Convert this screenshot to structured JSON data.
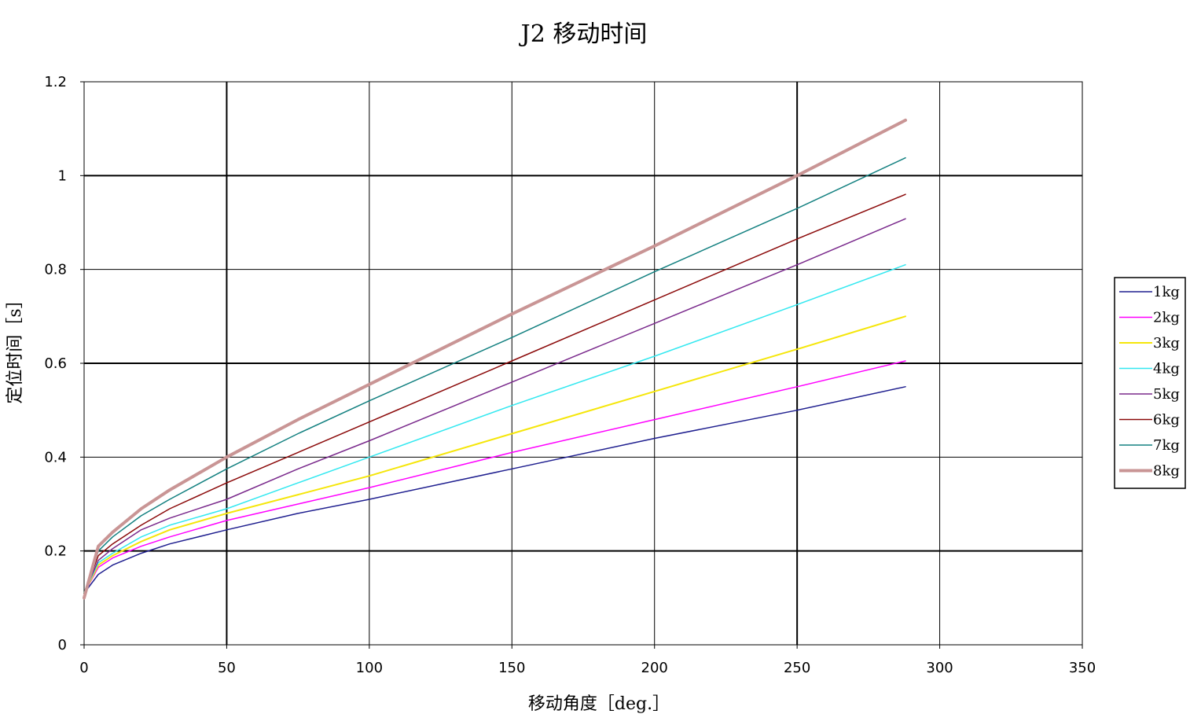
{
  "chart_data": {
    "type": "line",
    "title": "J2 移动时间",
    "xlabel": "移动角度［deg.］",
    "ylabel": "定位时间［s］",
    "xlim": [
      0,
      350
    ],
    "ylim": [
      0,
      1.2
    ],
    "x_ticks": [
      "0",
      "50",
      "100",
      "150",
      "200",
      "250",
      "300",
      "350"
    ],
    "y_ticks": [
      "0",
      "0.2",
      "0.4",
      "0.6",
      "0.8",
      "1",
      "1.2"
    ],
    "grid": true,
    "legend_position": "right",
    "x": [
      0,
      5,
      10,
      20,
      30,
      50,
      75,
      100,
      150,
      200,
      250,
      288
    ],
    "series": [
      {
        "name": "1kg",
        "color": "#1f1f8f",
        "width": 1.5,
        "values": [
          0.11,
          0.15,
          0.17,
          0.195,
          0.215,
          0.245,
          0.28,
          0.31,
          0.375,
          0.44,
          0.5,
          0.55
        ]
      },
      {
        "name": "2kg",
        "color": "#ff00ff",
        "width": 1.5,
        "values": [
          0.11,
          0.165,
          0.185,
          0.21,
          0.23,
          0.265,
          0.3,
          0.335,
          0.41,
          0.48,
          0.55,
          0.605
        ]
      },
      {
        "name": "3kg",
        "color": "#f5e60a",
        "width": 2,
        "values": [
          0.11,
          0.17,
          0.19,
          0.22,
          0.245,
          0.28,
          0.32,
          0.36,
          0.45,
          0.54,
          0.63,
          0.7
        ]
      },
      {
        "name": "4kg",
        "color": "#33e8f0",
        "width": 1.5,
        "values": [
          0.11,
          0.175,
          0.195,
          0.23,
          0.255,
          0.29,
          0.345,
          0.4,
          0.51,
          0.615,
          0.725,
          0.81
        ]
      },
      {
        "name": "5kg",
        "color": "#7a2a8c",
        "width": 1.5,
        "values": [
          0.11,
          0.18,
          0.205,
          0.245,
          0.27,
          0.31,
          0.375,
          0.435,
          0.56,
          0.685,
          0.81,
          0.908
        ]
      },
      {
        "name": "6kg",
        "color": "#8b0a0a",
        "width": 1.5,
        "values": [
          0.11,
          0.19,
          0.215,
          0.255,
          0.29,
          0.345,
          0.41,
          0.475,
          0.605,
          0.735,
          0.865,
          0.96
        ]
      },
      {
        "name": "7kg",
        "color": "#138080",
        "width": 1.5,
        "values": [
          0.11,
          0.2,
          0.23,
          0.275,
          0.31,
          0.375,
          0.45,
          0.52,
          0.655,
          0.795,
          0.93,
          1.038
        ]
      },
      {
        "name": "8kg",
        "color": "#c99595",
        "width": 4,
        "values": [
          0.1,
          0.21,
          0.24,
          0.29,
          0.33,
          0.4,
          0.48,
          0.555,
          0.705,
          0.85,
          1.0,
          1.118
        ]
      }
    ]
  }
}
